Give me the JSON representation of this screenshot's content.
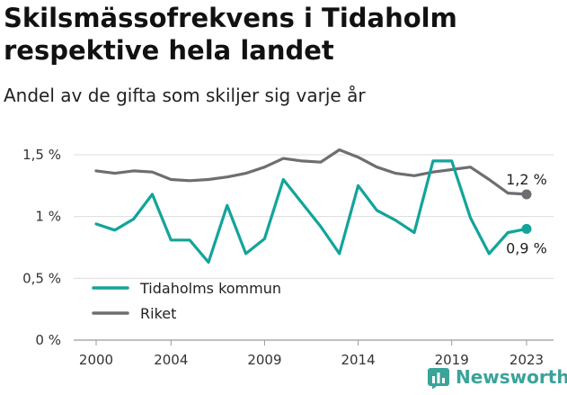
{
  "header": {
    "title": "Skilsmässofrekvens i Tidaholm respektive hela landet",
    "subtitle": "Andel av de gifta som skiljer sig varje år"
  },
  "brand": {
    "name": "Newsworthy",
    "icon": "bar-chart-logo-icon",
    "color": "#3aa39a"
  },
  "chart_data": {
    "type": "line",
    "title": "Skilsmässofrekvens i Tidaholm respektive hela landet",
    "subtitle": "Andel av de gifta som skiljer sig varje år",
    "xlabel": "",
    "ylabel": "",
    "ylim": [
      0,
      1.5
    ],
    "xlim": [
      2000,
      2023
    ],
    "grid": true,
    "legend_position": "bottom-left",
    "y_ticks": [
      {
        "value": 0,
        "label": "0 %"
      },
      {
        "value": 0.5,
        "label": "0,5 %"
      },
      {
        "value": 1,
        "label": "1 %"
      },
      {
        "value": 1.5,
        "label": "1,5 %"
      }
    ],
    "x_ticks": [
      {
        "value": 2000,
        "label": "2000"
      },
      {
        "value": 2004,
        "label": "2004"
      },
      {
        "value": 2009,
        "label": "2009"
      },
      {
        "value": 2014,
        "label": "2014"
      },
      {
        "value": 2019,
        "label": "2019"
      },
      {
        "value": 2023,
        "label": "2023"
      }
    ],
    "x": [
      2000,
      2001,
      2002,
      2003,
      2004,
      2005,
      2006,
      2007,
      2008,
      2009,
      2010,
      2011,
      2012,
      2013,
      2014,
      2015,
      2016,
      2017,
      2018,
      2019,
      2020,
      2021,
      2022,
      2023
    ],
    "series": [
      {
        "name": "Tidaholms kommun",
        "color": "#12a49a",
        "values": [
          0.94,
          0.89,
          0.98,
          1.18,
          0.81,
          0.81,
          0.63,
          1.09,
          0.7,
          0.82,
          1.3,
          1.11,
          0.92,
          0.7,
          1.25,
          1.05,
          0.97,
          0.87,
          1.45,
          1.45,
          0.99,
          0.7,
          0.87,
          0.9
        ],
        "end_label": "0,9 %"
      },
      {
        "name": "Riket",
        "color": "#6e6e72",
        "values": [
          1.37,
          1.35,
          1.37,
          1.36,
          1.3,
          1.29,
          1.3,
          1.32,
          1.35,
          1.4,
          1.47,
          1.45,
          1.44,
          1.54,
          1.48,
          1.4,
          1.35,
          1.33,
          1.36,
          1.38,
          1.4,
          1.3,
          1.19,
          1.18
        ],
        "end_label": "1,2 %"
      }
    ]
  }
}
